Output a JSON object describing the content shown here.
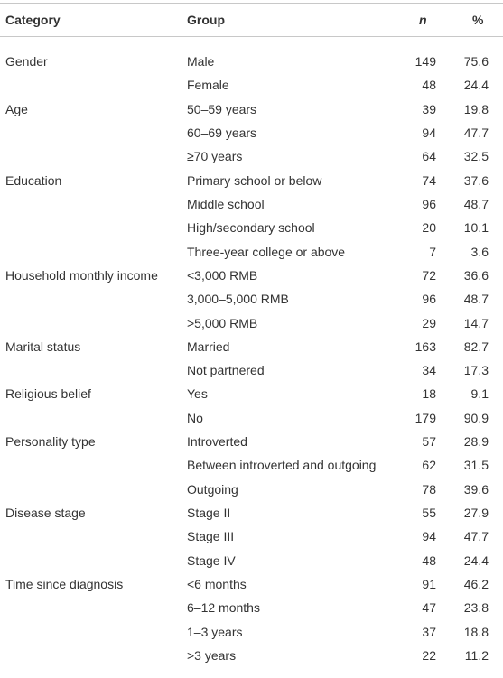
{
  "table": {
    "header": [
      "Category",
      "Group",
      "n",
      "%"
    ],
    "sections": [
      {
        "category": "Gender",
        "rows": [
          [
            "Male",
            149,
            75.6
          ],
          [
            "Female",
            48,
            24.4
          ]
        ]
      },
      {
        "category": "Age",
        "rows": [
          [
            "50–59 years",
            39,
            19.8
          ],
          [
            "60–69 years",
            94,
            47.7
          ],
          [
            "≥70 years",
            64,
            32.5
          ]
        ]
      },
      {
        "category": "Education",
        "rows": [
          [
            "Primary school or below",
            74,
            37.6
          ],
          [
            "Middle school",
            96,
            48.7
          ],
          [
            "High/secondary school",
            20,
            10.1
          ],
          [
            "Three-year college or above",
            7,
            3.6
          ]
        ]
      },
      {
        "category": "Household monthly income",
        "rows": [
          [
            "<3,000 RMB",
            72,
            36.6
          ],
          [
            "3,000–5,000 RMB",
            96,
            48.7
          ],
          [
            ">5,000 RMB",
            29,
            14.7
          ]
        ]
      },
      {
        "category": "Marital status",
        "rows": [
          [
            "Married",
            163,
            82.7
          ],
          [
            "Not partnered",
            34,
            17.3
          ]
        ]
      },
      {
        "category": "Religious belief",
        "rows": [
          [
            "Yes",
            18,
            9.1
          ],
          [
            "No",
            179,
            90.9
          ]
        ]
      },
      {
        "category": "Personality type",
        "rows": [
          [
            "Introverted",
            57,
            28.9
          ],
          [
            "Between introverted and outgoing",
            62,
            31.5
          ],
          [
            "Outgoing",
            78,
            39.6
          ]
        ]
      },
      {
        "category": "Disease stage",
        "rows": [
          [
            "Stage II",
            55,
            27.9
          ],
          [
            "Stage III",
            94,
            47.7
          ],
          [
            "Stage IV",
            48,
            24.4
          ]
        ]
      },
      {
        "category": "Time since diagnosis",
        "rows": [
          [
            "<6 months",
            91,
            46.2
          ],
          [
            "6–12 months",
            47,
            23.8
          ],
          [
            "1–3 years",
            37,
            18.8
          ],
          [
            ">3 years",
            22,
            11.2
          ]
        ]
      }
    ]
  }
}
